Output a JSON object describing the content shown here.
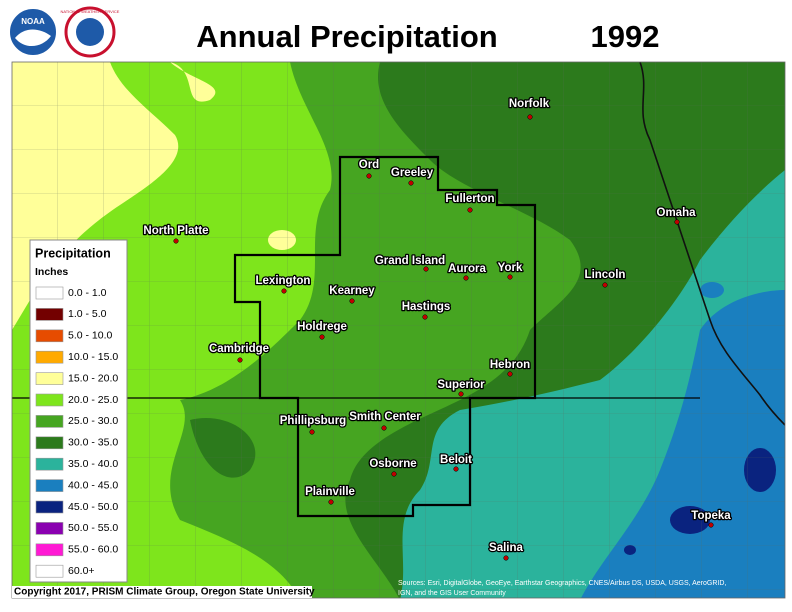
{
  "header": {
    "title": "Annual Precipitation",
    "year": "1992",
    "logos": [
      "NOAA",
      "NATIONAL WEATHER SERVICE"
    ]
  },
  "legend": {
    "title": "Precipitation",
    "units": "Inches",
    "items": [
      {
        "label": "0.0 - 1.0",
        "color": "#ffffff"
      },
      {
        "label": "1.0 - 5.0",
        "color": "#730000"
      },
      {
        "label": "5.0 - 10.0",
        "color": "#e64c00"
      },
      {
        "label": "10.0 - 15.0",
        "color": "#ffaa00"
      },
      {
        "label": "15.0 - 20.0",
        "color": "#ffff99"
      },
      {
        "label": "20.0 - 25.0",
        "color": "#7ee51c"
      },
      {
        "label": "25.0 - 30.0",
        "color": "#46a521"
      },
      {
        "label": "30.0 - 35.0",
        "color": "#2c7a1c"
      },
      {
        "label": "35.0 - 40.0",
        "color": "#2bb39c"
      },
      {
        "label": "40.0 - 45.0",
        "color": "#1a7fbf"
      },
      {
        "label": "45.0 - 50.0",
        "color": "#0a237f"
      },
      {
        "label": "50.0 - 55.0",
        "color": "#8a00b0"
      },
      {
        "label": "55.0 - 60.0",
        "color": "#ff19d4"
      },
      {
        "label": "60.0+",
        "color": "#ffffff"
      }
    ]
  },
  "cities": [
    "Ord",
    "Greeley",
    "Fullerton",
    "Norfolk",
    "North Platte",
    "Omaha",
    "Grand Island",
    "Aurora",
    "York",
    "Lincoln",
    "Lexington",
    "Kearney",
    "Hastings",
    "Holdrege",
    "Cambridge",
    "Hebron",
    "Superior",
    "Smith Center",
    "Phillipsburg",
    "Beloit",
    "Osborne",
    "Plainville",
    "Topeka",
    "Salina"
  ],
  "credits": {
    "copyright": "Copyright 2017, PRISM Climate Group, Oregon State University",
    "sources": [
      "Sources: Esri, DigitalGlobe, GeoEye, Earthstar Geographics, CNES/Airbus DS, USDA, USGS, AeroGRID,",
      "IGN, and the GIS User Community"
    ]
  }
}
